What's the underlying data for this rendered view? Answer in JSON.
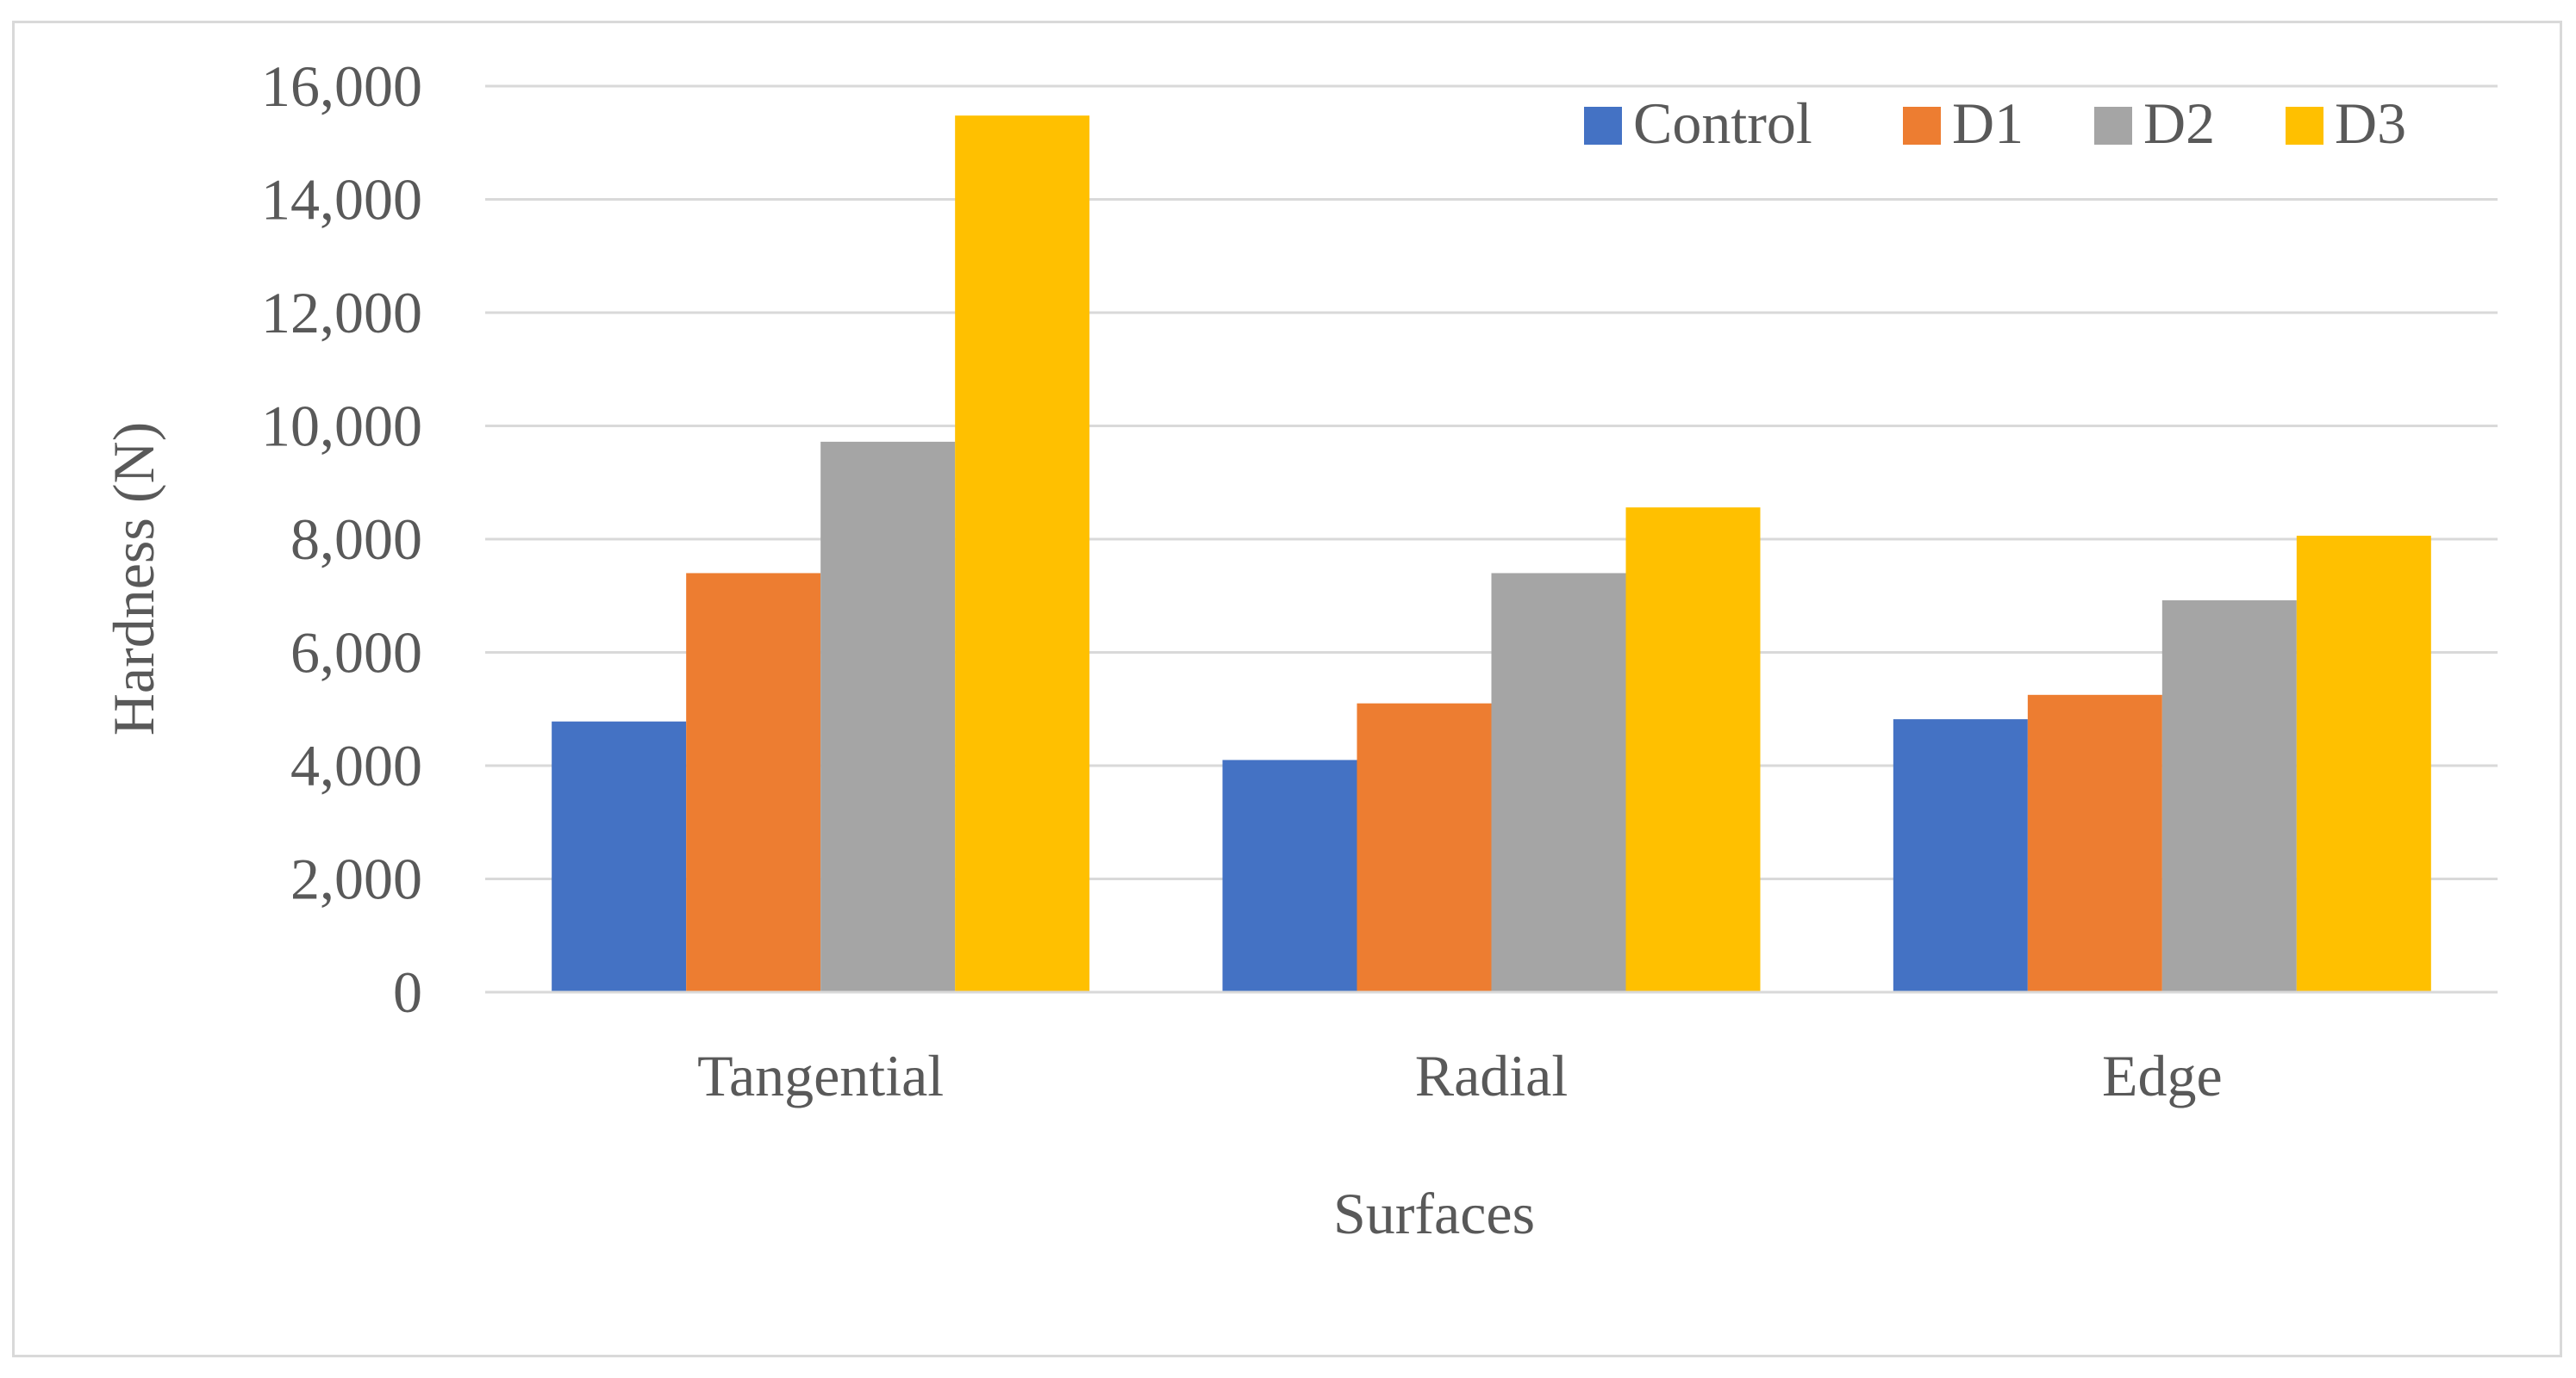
{
  "chart_data": {
    "type": "bar",
    "title": "",
    "xlabel": "Surfaces",
    "ylabel": "Hardness (N)",
    "ylim": [
      0,
      16000
    ],
    "yticks": [
      0,
      2000,
      4000,
      6000,
      8000,
      10000,
      12000,
      14000,
      16000
    ],
    "ytick_labels": [
      "0",
      "2,000",
      "4,000",
      "6,000",
      "8,000",
      "10,000",
      "12,000",
      "14,000",
      "16,000"
    ],
    "grid": true,
    "legend_position": "top-right",
    "categories": [
      "Tangential",
      "Radial",
      "Edge"
    ],
    "series": [
      {
        "name": "Control",
        "color": "#4472C4",
        "values": [
          4780,
          4100,
          4820
        ]
      },
      {
        "name": "D1",
        "color": "#ED7D31",
        "values": [
          7400,
          5100,
          5250
        ]
      },
      {
        "name": "D2",
        "color": "#A5A5A5",
        "values": [
          9720,
          7400,
          6920
        ]
      },
      {
        "name": "D3",
        "color": "#FFC000",
        "values": [
          15480,
          8560,
          8060
        ]
      }
    ]
  }
}
